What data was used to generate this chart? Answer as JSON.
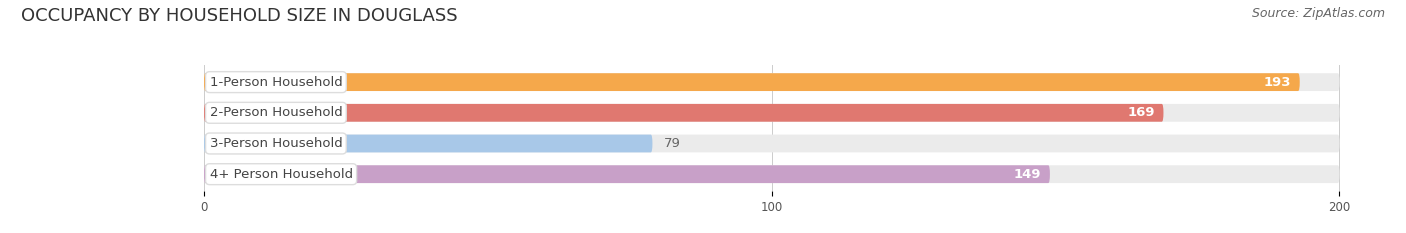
{
  "title": "OCCUPANCY BY HOUSEHOLD SIZE IN DOUGLASS",
  "source": "Source: ZipAtlas.com",
  "categories": [
    "1-Person Household",
    "2-Person Household",
    "3-Person Household",
    "4+ Person Household"
  ],
  "values": [
    193,
    169,
    79,
    149
  ],
  "bar_colors": [
    "#F5A84B",
    "#E07870",
    "#A8C8E8",
    "#C8A0C8"
  ],
  "bg_bar_color": "#EBEBEB",
  "xlim": [
    0,
    200
  ],
  "xticks": [
    0,
    100,
    200
  ],
  "value_threshold": 100,
  "background_color": "#ffffff",
  "bar_height": 0.58,
  "title_fontsize": 13,
  "label_fontsize": 9.5,
  "value_fontsize": 9.5,
  "source_fontsize": 9,
  "grid_color": "#CCCCCC",
  "label_pill_color": "white",
  "label_text_color": "#444444",
  "value_color_inside": "white",
  "value_color_outside": "#666666"
}
